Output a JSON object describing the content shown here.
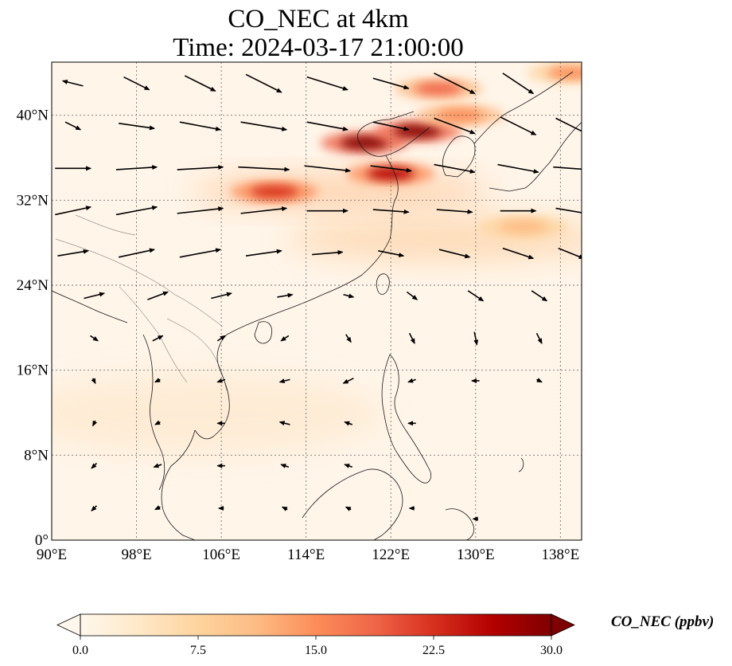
{
  "title": {
    "line1": "CO_NEC at 4km",
    "line2": "Time: 2024-03-17 21:00:00"
  },
  "map": {
    "lon_range": [
      90,
      140
    ],
    "lat_range": [
      0,
      45
    ],
    "lat_ticks": [
      {
        "value": 0,
        "label": "0°"
      },
      {
        "value": 8,
        "label": "8°N"
      },
      {
        "value": 16,
        "label": "16°N"
      },
      {
        "value": 24,
        "label": "24°N"
      },
      {
        "value": 32,
        "label": "32°N"
      },
      {
        "value": 40,
        "label": "40°N"
      }
    ],
    "lon_ticks": [
      {
        "value": 90,
        "label": "90°E"
      },
      {
        "value": 98,
        "label": "98°E"
      },
      {
        "value": 106,
        "label": "106°E"
      },
      {
        "value": 114,
        "label": "114°E"
      },
      {
        "value": 122,
        "label": "122°E"
      },
      {
        "value": 130,
        "label": "130°E"
      },
      {
        "value": 138,
        "label": "138°E"
      }
    ],
    "gridlines": true,
    "high_concentration_bands": [
      {
        "lon": 111.0,
        "lat": 32.8,
        "value": 22
      },
      {
        "lon": 122.0,
        "lat": 34.5,
        "value": 28
      },
      {
        "lon": 119.5,
        "lat": 37.4,
        "value": 30
      },
      {
        "lon": 124.5,
        "lat": 38.5,
        "value": 30
      },
      {
        "lon": 126.5,
        "lat": 42.5,
        "value": 18
      },
      {
        "lon": 128.5,
        "lat": 40.0,
        "value": 16
      },
      {
        "lon": 134.5,
        "lat": 29.5,
        "value": 10
      },
      {
        "lon": 139.0,
        "lat": 44.0,
        "value": 14
      }
    ],
    "wind_vectors": [
      {
        "lon": 92,
        "lat": 43,
        "u": -8,
        "v": 2
      },
      {
        "lon": 98,
        "lat": 43,
        "u": 10,
        "v": -5
      },
      {
        "lon": 104,
        "lat": 43,
        "u": 12,
        "v": -6
      },
      {
        "lon": 110,
        "lat": 43,
        "u": 14,
        "v": -7
      },
      {
        "lon": 116,
        "lat": 43,
        "u": 16,
        "v": -5
      },
      {
        "lon": 122,
        "lat": 43,
        "u": 14,
        "v": -4
      },
      {
        "lon": 128,
        "lat": 43,
        "u": 16,
        "v": -8
      },
      {
        "lon": 134,
        "lat": 43,
        "u": 12,
        "v": -8
      },
      {
        "lon": 92,
        "lat": 39,
        "u": 6,
        "v": -3
      },
      {
        "lon": 98,
        "lat": 39,
        "u": 14,
        "v": -2
      },
      {
        "lon": 104,
        "lat": 39,
        "u": 16,
        "v": -3
      },
      {
        "lon": 110,
        "lat": 39,
        "u": 18,
        "v": -3
      },
      {
        "lon": 116,
        "lat": 39,
        "u": 16,
        "v": -3
      },
      {
        "lon": 122,
        "lat": 39,
        "u": 14,
        "v": -3
      },
      {
        "lon": 128,
        "lat": 39,
        "u": 16,
        "v": -6
      },
      {
        "lon": 134,
        "lat": 39,
        "u": 14,
        "v": -7
      },
      {
        "lon": 139,
        "lat": 39,
        "u": 12,
        "v": -6
      },
      {
        "lon": 92,
        "lat": 35,
        "u": 14,
        "v": 0
      },
      {
        "lon": 98,
        "lat": 35,
        "u": 16,
        "v": 1
      },
      {
        "lon": 104,
        "lat": 35,
        "u": 18,
        "v": 1
      },
      {
        "lon": 110,
        "lat": 35,
        "u": 20,
        "v": -1
      },
      {
        "lon": 116,
        "lat": 35,
        "u": 18,
        "v": -2
      },
      {
        "lon": 122,
        "lat": 35,
        "u": 16,
        "v": -2
      },
      {
        "lon": 128,
        "lat": 35,
        "u": 16,
        "v": -3
      },
      {
        "lon": 134,
        "lat": 35,
        "u": 16,
        "v": -3
      },
      {
        "lon": 139,
        "lat": 35,
        "u": 14,
        "v": -1
      },
      {
        "lon": 92,
        "lat": 31,
        "u": 14,
        "v": 3
      },
      {
        "lon": 98,
        "lat": 31,
        "u": 16,
        "v": 3
      },
      {
        "lon": 104,
        "lat": 31,
        "u": 18,
        "v": 2
      },
      {
        "lon": 110,
        "lat": 31,
        "u": 18,
        "v": 2
      },
      {
        "lon": 116,
        "lat": 31,
        "u": 16,
        "v": 0
      },
      {
        "lon": 122,
        "lat": 31,
        "u": 14,
        "v": -1
      },
      {
        "lon": 128,
        "lat": 31,
        "u": 14,
        "v": -1
      },
      {
        "lon": 134,
        "lat": 31,
        "u": 14,
        "v": 0
      },
      {
        "lon": 139,
        "lat": 31,
        "u": 12,
        "v": -2
      },
      {
        "lon": 92,
        "lat": 27,
        "u": 12,
        "v": 2
      },
      {
        "lon": 98,
        "lat": 27,
        "u": 14,
        "v": 3
      },
      {
        "lon": 104,
        "lat": 27,
        "u": 16,
        "v": 3
      },
      {
        "lon": 110,
        "lat": 27,
        "u": 14,
        "v": 2
      },
      {
        "lon": 116,
        "lat": 27,
        "u": 12,
        "v": 1
      },
      {
        "lon": 122,
        "lat": 27,
        "u": 10,
        "v": -2
      },
      {
        "lon": 128,
        "lat": 27,
        "u": 12,
        "v": -3
      },
      {
        "lon": 134,
        "lat": 27,
        "u": 12,
        "v": -4
      },
      {
        "lon": 139,
        "lat": 27,
        "u": 10,
        "v": -4
      },
      {
        "lon": 94,
        "lat": 23,
        "u": 8,
        "v": 2
      },
      {
        "lon": 100,
        "lat": 23,
        "u": 8,
        "v": 3
      },
      {
        "lon": 106,
        "lat": 23,
        "u": 8,
        "v": 2
      },
      {
        "lon": 112,
        "lat": 23,
        "u": 6,
        "v": 1
      },
      {
        "lon": 118,
        "lat": 23,
        "u": 4,
        "v": -1
      },
      {
        "lon": 124,
        "lat": 23,
        "u": 4,
        "v": -3
      },
      {
        "lon": 130,
        "lat": 23,
        "u": 6,
        "v": -4
      },
      {
        "lon": 136,
        "lat": 23,
        "u": 6,
        "v": -4
      },
      {
        "lon": 94,
        "lat": 19,
        "u": 3,
        "v": -2
      },
      {
        "lon": 100,
        "lat": 19,
        "u": 4,
        "v": 2
      },
      {
        "lon": 106,
        "lat": 19,
        "u": 3,
        "v": 2
      },
      {
        "lon": 112,
        "lat": 19,
        "u": -3,
        "v": -2
      },
      {
        "lon": 118,
        "lat": 19,
        "u": 2,
        "v": -3
      },
      {
        "lon": 124,
        "lat": 19,
        "u": 2,
        "v": -4
      },
      {
        "lon": 130,
        "lat": 19,
        "u": 1,
        "v": -5
      },
      {
        "lon": 136,
        "lat": 19,
        "u": 2,
        "v": -4
      },
      {
        "lon": 94,
        "lat": 15,
        "u": 1,
        "v": -2
      },
      {
        "lon": 100,
        "lat": 15,
        "u": -2,
        "v": -1
      },
      {
        "lon": 106,
        "lat": 15,
        "u": -3,
        "v": -1
      },
      {
        "lon": 112,
        "lat": 15,
        "u": -4,
        "v": -1
      },
      {
        "lon": 118,
        "lat": 15,
        "u": -4,
        "v": -2
      },
      {
        "lon": 124,
        "lat": 15,
        "u": -3,
        "v": -1
      },
      {
        "lon": 130,
        "lat": 15,
        "u": -3,
        "v": 0
      },
      {
        "lon": 136,
        "lat": 15,
        "u": 2,
        "v": -1
      },
      {
        "lon": 94,
        "lat": 11,
        "u": -1,
        "v": -2
      },
      {
        "lon": 100,
        "lat": 11,
        "u": -2,
        "v": -1
      },
      {
        "lon": 106,
        "lat": 11,
        "u": -3,
        "v": 0
      },
      {
        "lon": 112,
        "lat": 11,
        "u": -4,
        "v": 1
      },
      {
        "lon": 118,
        "lat": 11,
        "u": -3,
        "v": 1
      },
      {
        "lon": 124,
        "lat": 11,
        "u": -3,
        "v": 0
      },
      {
        "lon": 94,
        "lat": 7,
        "u": -2,
        "v": -2
      },
      {
        "lon": 100,
        "lat": 7,
        "u": -3,
        "v": -1
      },
      {
        "lon": 106,
        "lat": 7,
        "u": -3,
        "v": 0
      },
      {
        "lon": 112,
        "lat": 7,
        "u": -3,
        "v": 1
      },
      {
        "lon": 118,
        "lat": 7,
        "u": -3,
        "v": 1
      },
      {
        "lon": 94,
        "lat": 3,
        "u": -2,
        "v": -2
      },
      {
        "lon": 100,
        "lat": 3,
        "u": -2,
        "v": -1
      },
      {
        "lon": 106,
        "lat": 3,
        "u": -2,
        "v": 0
      },
      {
        "lon": 112,
        "lat": 3,
        "u": -2,
        "v": 1
      },
      {
        "lon": 118,
        "lat": 3,
        "u": -2,
        "v": 1
      },
      {
        "lon": 124,
        "lat": 3,
        "u": -2,
        "v": 0
      },
      {
        "lon": 130,
        "lat": 2,
        "u": -2,
        "v": 0
      }
    ]
  },
  "colorbar": {
    "label": "CO_NEC (ppbv)",
    "min": 0.0,
    "max": 30.0,
    "ticks": [
      {
        "value": 0.0,
        "label": "0.0"
      },
      {
        "value": 7.5,
        "label": "7.5"
      },
      {
        "value": 15.0,
        "label": "15.0"
      },
      {
        "value": 22.5,
        "label": "22.5"
      },
      {
        "value": 30.0,
        "label": "30.0"
      }
    ],
    "extend": "both",
    "colors": [
      "#fff7ec",
      "#fee8c8",
      "#fdd49e",
      "#fdbb84",
      "#fc8d59",
      "#ef6548",
      "#d7301f",
      "#b30000",
      "#7f0000"
    ]
  }
}
